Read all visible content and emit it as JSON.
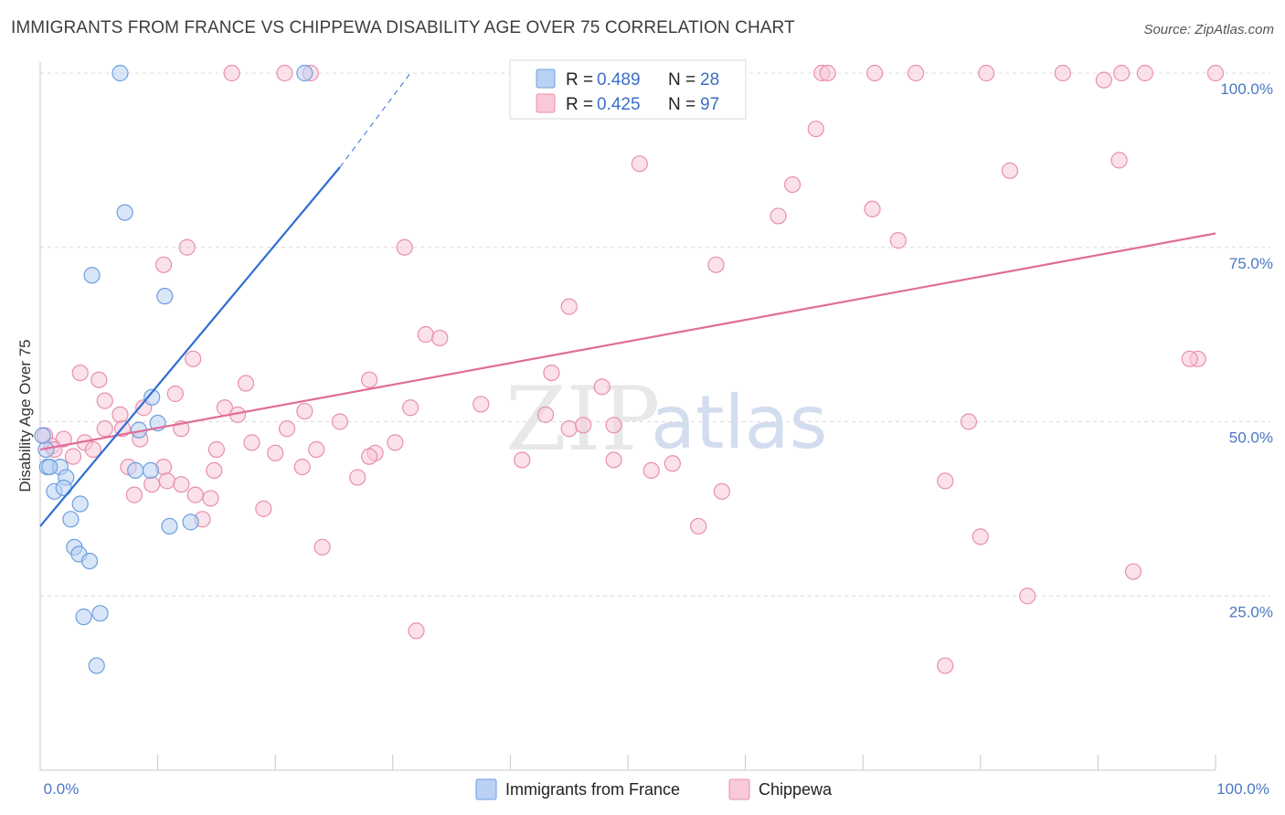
{
  "header": {
    "title": "IMMIGRANTS FROM FRANCE VS CHIPPEWA DISABILITY AGE OVER 75 CORRELATION CHART",
    "source": "Source: ZipAtlas.com"
  },
  "watermark": {
    "zip": "ZIP",
    "atlas": "atlas"
  },
  "colors": {
    "france_fill": "#b9d1f3",
    "france_stroke": "#6d9ee0",
    "france_line": "#2f6fd0",
    "chippewa_fill": "#f8c9d8",
    "chippewa_stroke": "#e88fae",
    "chippewa_line": "#e06d98",
    "grid": "#dcdcdc",
    "tick_text": "#4a78c2"
  },
  "legend": {
    "france": {
      "r_label": "R = ",
      "r_value": "0.489",
      "n_label": "N = ",
      "n_value": "28"
    },
    "chippewa": {
      "r_label": "R = ",
      "r_value": "0.425",
      "n_label": "N = ",
      "n_value": "97"
    }
  },
  "bottom_legend": {
    "france": "Immigrants from France",
    "chippewa": "Chippewa"
  },
  "chart_data": {
    "type": "scatter",
    "title": "IMMIGRANTS FROM FRANCE VS CHIPPEWA DISABILITY AGE OVER 75 CORRELATION CHART",
    "xlabel": "",
    "ylabel": "Disability Age Over 75",
    "xlim": [
      0,
      100
    ],
    "ylim": [
      0,
      102
    ],
    "x_tick_labels": [
      "0.0%",
      "100.0%"
    ],
    "y_ticks": [
      25,
      50,
      75,
      100
    ],
    "y_tick_labels": [
      "25.0%",
      "50.0%",
      "75.0%",
      "100.0%"
    ],
    "series": [
      {
        "name": "Immigrants from France",
        "r": 0.489,
        "n": 28,
        "trend": {
          "x0": 0,
          "y0": 35.0,
          "x1": 25.5,
          "y1": 86.5,
          "dash_x1": 31.5,
          "dash_y1": 100.0
        },
        "points": [
          [
            6.8,
            100.0
          ],
          [
            22.5,
            100.0
          ],
          [
            7.2,
            80.0
          ],
          [
            4.4,
            71.0
          ],
          [
            10.6,
            68.0
          ],
          [
            9.5,
            53.5
          ],
          [
            10.0,
            49.8
          ],
          [
            8.4,
            48.8
          ],
          [
            0.5,
            46.0
          ],
          [
            0.6,
            43.5
          ],
          [
            1.7,
            43.5
          ],
          [
            0.8,
            43.5
          ],
          [
            8.1,
            43.0
          ],
          [
            9.4,
            43.0
          ],
          [
            2.2,
            42.0
          ],
          [
            1.2,
            40.0
          ],
          [
            2.0,
            40.5
          ],
          [
            3.4,
            38.2
          ],
          [
            2.6,
            36.0
          ],
          [
            12.8,
            35.6
          ],
          [
            11.0,
            35.0
          ],
          [
            2.9,
            32.0
          ],
          [
            3.3,
            31.0
          ],
          [
            4.2,
            30.0
          ],
          [
            5.1,
            22.5
          ],
          [
            3.7,
            22.0
          ],
          [
            4.8,
            15.0
          ],
          [
            0.2,
            48.0
          ]
        ]
      },
      {
        "name": "Chippewa",
        "r": 0.425,
        "n": 97,
        "trend": {
          "x0": 0,
          "y0": 46.0,
          "x1": 100,
          "y1": 77.0
        },
        "points": [
          [
            16.3,
            100.0
          ],
          [
            20.8,
            100.0
          ],
          [
            23.0,
            100.0
          ],
          [
            66.5,
            100.0
          ],
          [
            67.0,
            100.0
          ],
          [
            71.0,
            100.0
          ],
          [
            74.5,
            100.0
          ],
          [
            80.5,
            100.0
          ],
          [
            87.0,
            100.0
          ],
          [
            92.0,
            100.0
          ],
          [
            94.0,
            100.0
          ],
          [
            100.0,
            100.0
          ],
          [
            90.5,
            99.0
          ],
          [
            66.0,
            92.0
          ],
          [
            51.0,
            87.0
          ],
          [
            91.8,
            87.5
          ],
          [
            82.5,
            86.0
          ],
          [
            64.0,
            84.0
          ],
          [
            62.8,
            79.5
          ],
          [
            70.8,
            80.5
          ],
          [
            12.5,
            75.0
          ],
          [
            31.0,
            75.0
          ],
          [
            73.0,
            76.0
          ],
          [
            10.5,
            72.5
          ],
          [
            57.5,
            72.5
          ],
          [
            45.0,
            66.5
          ],
          [
            32.8,
            62.5
          ],
          [
            34.0,
            62.0
          ],
          [
            98.5,
            59.0
          ],
          [
            97.8,
            59.0
          ],
          [
            13.0,
            59.0
          ],
          [
            3.4,
            57.0
          ],
          [
            17.5,
            55.5
          ],
          [
            28.0,
            56.0
          ],
          [
            43.5,
            57.0
          ],
          [
            47.8,
            55.0
          ],
          [
            11.5,
            54.0
          ],
          [
            5.5,
            53.0
          ],
          [
            8.8,
            52.0
          ],
          [
            15.7,
            52.0
          ],
          [
            31.5,
            52.0
          ],
          [
            37.5,
            52.5
          ],
          [
            22.5,
            51.5
          ],
          [
            6.8,
            51.0
          ],
          [
            16.8,
            51.0
          ],
          [
            43.0,
            51.0
          ],
          [
            48.8,
            49.5
          ],
          [
            45.0,
            49.0
          ],
          [
            46.2,
            49.5
          ],
          [
            25.5,
            50.0
          ],
          [
            79.0,
            50.0
          ],
          [
            5.5,
            49.0
          ],
          [
            7.0,
            49.0
          ],
          [
            0.4,
            48.0
          ],
          [
            1.0,
            46.5
          ],
          [
            2.0,
            47.5
          ],
          [
            3.8,
            47.0
          ],
          [
            8.5,
            47.5
          ],
          [
            30.2,
            47.0
          ],
          [
            18.0,
            47.0
          ],
          [
            15.0,
            46.0
          ],
          [
            23.5,
            46.0
          ],
          [
            4.5,
            46.0
          ],
          [
            1.2,
            46.0
          ],
          [
            20.0,
            45.5
          ],
          [
            28.5,
            45.5
          ],
          [
            2.8,
            45.0
          ],
          [
            7.5,
            43.5
          ],
          [
            10.5,
            43.5
          ],
          [
            14.8,
            43.0
          ],
          [
            22.3,
            43.5
          ],
          [
            28.0,
            45.0
          ],
          [
            41.0,
            44.5
          ],
          [
            48.8,
            44.5
          ],
          [
            52.0,
            43.0
          ],
          [
            53.8,
            44.0
          ],
          [
            10.8,
            41.5
          ],
          [
            12.0,
            41.0
          ],
          [
            27.0,
            42.0
          ],
          [
            58.0,
            40.0
          ],
          [
            77.0,
            41.5
          ],
          [
            9.5,
            41.0
          ],
          [
            8.0,
            39.5
          ],
          [
            13.2,
            39.5
          ],
          [
            14.5,
            39.0
          ],
          [
            19.0,
            37.5
          ],
          [
            13.8,
            36.0
          ],
          [
            56.0,
            35.0
          ],
          [
            80.0,
            33.5
          ],
          [
            24.0,
            32.0
          ],
          [
            93.0,
            28.5
          ],
          [
            84.0,
            25.0
          ],
          [
            32.0,
            20.0
          ],
          [
            77.0,
            15.0
          ],
          [
            12.0,
            49.0
          ],
          [
            5.0,
            56.0
          ],
          [
            21.0,
            49.0
          ]
        ]
      }
    ]
  }
}
